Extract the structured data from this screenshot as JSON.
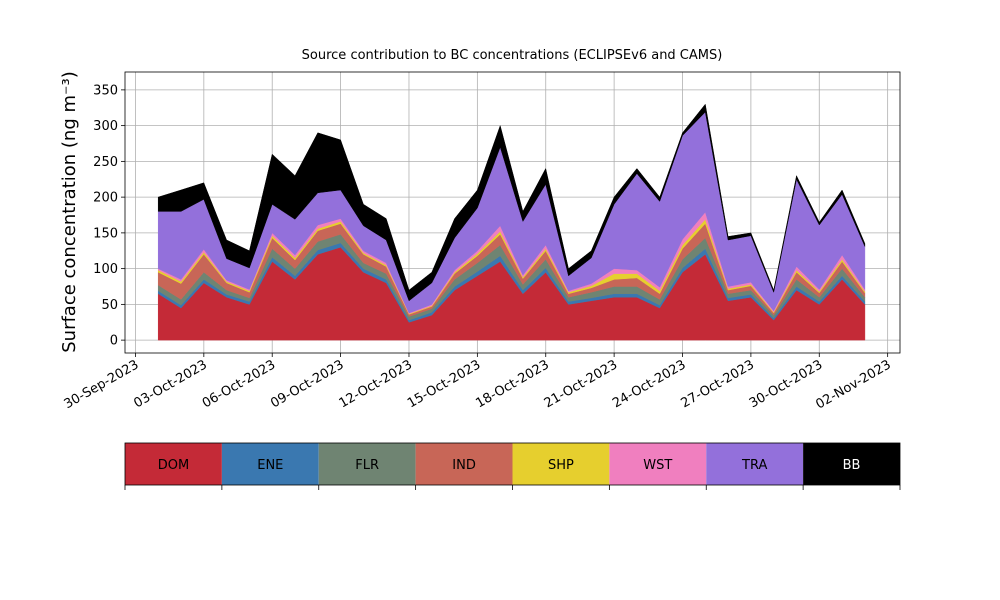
{
  "chart_data": {
    "type": "stacked_area",
    "title": "Source contribution to BC concentrations (ECLIPSEv6 and CAMS)",
    "y_label": "Surface concentration (ng m⁻³)",
    "x": [
      "2023-10-01",
      "2023-10-02",
      "2023-10-03",
      "2023-10-04",
      "2023-10-05",
      "2023-10-06",
      "2023-10-07",
      "2023-10-08",
      "2023-10-09",
      "2023-10-10",
      "2023-10-11",
      "2023-10-12",
      "2023-10-13",
      "2023-10-14",
      "2023-10-15",
      "2023-10-16",
      "2023-10-17",
      "2023-10-18",
      "2023-10-19",
      "2023-10-20",
      "2023-10-21",
      "2023-10-22",
      "2023-10-23",
      "2023-10-24",
      "2023-10-25",
      "2023-10-26",
      "2023-10-27",
      "2023-10-28",
      "2023-10-29",
      "2023-10-30",
      "2023-10-31",
      "2023-11-01"
    ],
    "series": [
      {
        "name": "DOM",
        "color": "#c42a37",
        "values": [
          65,
          45,
          80,
          60,
          50,
          110,
          85,
          120,
          130,
          95,
          80,
          25,
          35,
          70,
          90,
          110,
          65,
          95,
          50,
          55,
          60,
          60,
          45,
          95,
          120,
          55,
          60,
          28,
          70,
          50,
          85,
          50
        ]
      },
      {
        "name": "ENE",
        "color": "#3a78b0",
        "values": [
          4,
          4,
          5,
          4,
          4,
          6,
          5,
          6,
          6,
          5,
          5,
          3,
          4,
          5,
          6,
          8,
          5,
          6,
          4,
          4,
          5,
          5,
          4,
          6,
          8,
          4,
          4,
          3,
          5,
          4,
          5,
          4
        ]
      },
      {
        "name": "FLR",
        "color": "#6f8472",
        "values": [
          8,
          8,
          10,
          6,
          5,
          12,
          10,
          12,
          12,
          8,
          8,
          5,
          5,
          10,
          12,
          15,
          8,
          12,
          6,
          8,
          10,
          10,
          8,
          12,
          15,
          6,
          6,
          4,
          10,
          6,
          10,
          6
        ]
      },
      {
        "name": "IND",
        "color": "#c86657",
        "values": [
          18,
          22,
          25,
          10,
          8,
          15,
          12,
          15,
          15,
          12,
          10,
          3,
          3,
          8,
          10,
          15,
          8,
          12,
          5,
          6,
          10,
          12,
          8,
          15,
          20,
          5,
          6,
          3,
          10,
          6,
          10,
          6
        ]
      },
      {
        "name": "SHP",
        "color": "#e6cf2e",
        "values": [
          3,
          3,
          3,
          2,
          2,
          3,
          3,
          3,
          3,
          2,
          2,
          1,
          1,
          2,
          3,
          4,
          2,
          3,
          2,
          3,
          8,
          6,
          4,
          5,
          6,
          2,
          2,
          1,
          3,
          2,
          3,
          2
        ]
      },
      {
        "name": "WST",
        "color": "#f07fbf",
        "values": [
          2,
          3,
          4,
          2,
          2,
          4,
          4,
          5,
          4,
          3,
          3,
          1,
          2,
          3,
          4,
          8,
          3,
          5,
          2,
          3,
          7,
          5,
          5,
          8,
          10,
          3,
          3,
          2,
          5,
          3,
          6,
          3
        ]
      },
      {
        "name": "TRA",
        "color": "#9370db",
        "values": [
          80,
          95,
          70,
          30,
          30,
          40,
          50,
          45,
          40,
          35,
          32,
          17,
          30,
          45,
          60,
          110,
          75,
          85,
          21,
          36,
          90,
          135,
          120,
          145,
          140,
          65,
          65,
          26,
          122,
          90,
          85,
          60
        ]
      },
      {
        "name": "BB",
        "color": "#000000",
        "values": [
          20,
          30,
          23,
          26,
          24,
          70,
          61,
          84,
          70,
          30,
          30,
          15,
          15,
          27,
          25,
          30,
          14,
          22,
          10,
          10,
          10,
          7,
          6,
          4,
          11,
          5,
          4,
          3,
          5,
          4,
          6,
          4
        ]
      }
    ],
    "xlim": [
      "2023-09-29T13:00",
      "2023-11-02T13:00"
    ],
    "xticks": [
      {
        "value": "2023-09-30",
        "label": "30-Sep-2023"
      },
      {
        "value": "2023-10-03",
        "label": "03-Oct-2023"
      },
      {
        "value": "2023-10-06",
        "label": "06-Oct-2023"
      },
      {
        "value": "2023-10-09",
        "label": "09-Oct-2023"
      },
      {
        "value": "2023-10-12",
        "label": "12-Oct-2023"
      },
      {
        "value": "2023-10-15",
        "label": "15-Oct-2023"
      },
      {
        "value": "2023-10-18",
        "label": "18-Oct-2023"
      },
      {
        "value": "2023-10-21",
        "label": "21-Oct-2023"
      },
      {
        "value": "2023-10-24",
        "label": "24-Oct-2023"
      },
      {
        "value": "2023-10-27",
        "label": "27-Oct-2023"
      },
      {
        "value": "2023-10-30",
        "label": "30-Oct-2023"
      },
      {
        "value": "2023-11-02",
        "label": "02-Nov-2023"
      }
    ],
    "ylim": [
      -18,
      375
    ],
    "yticks": [
      0,
      50,
      100,
      150,
      200,
      250,
      300,
      350
    ],
    "grid": true,
    "legend": "bottom"
  }
}
